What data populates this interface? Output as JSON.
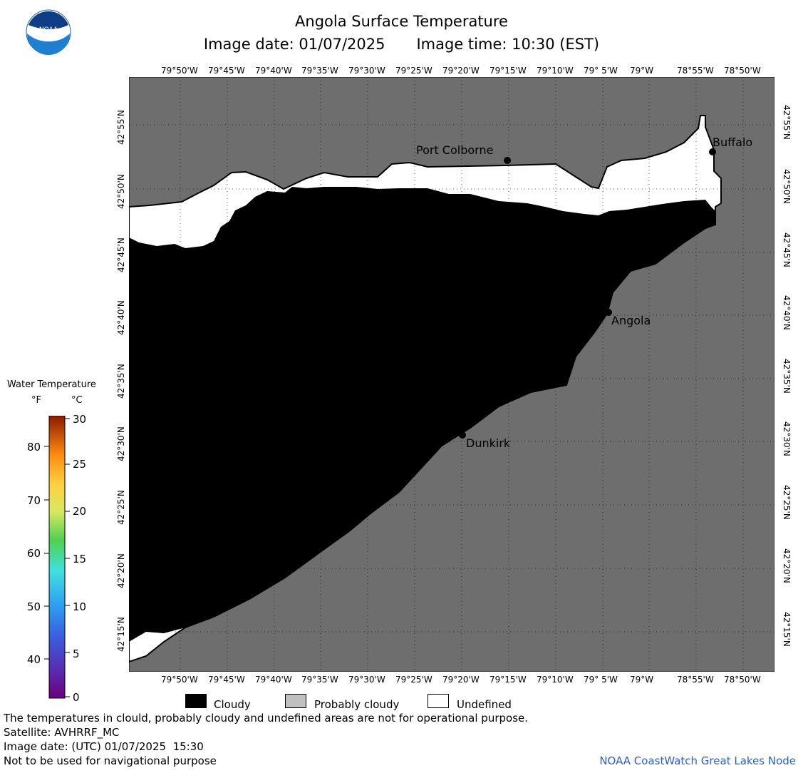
{
  "header": {
    "title": "Angola Surface Temperature",
    "image_date_label": "Image date: 01/07/2025",
    "image_time_label": "Image time: 10:30 (EST)"
  },
  "logo": {
    "text": "NOAA"
  },
  "map": {
    "longitude_labels": [
      "79°50'W",
      "79°45'W",
      "79°40'W",
      "79°35'W",
      "79°30'W",
      "79°25'W",
      "79°20'W",
      "79°15'W",
      "79°10'W",
      "79° 5'W",
      "79°W",
      "78°55'W",
      "78°50'W"
    ],
    "latitude_labels": [
      "42°55'N",
      "42°50'N",
      "42°45'N",
      "42°40'N",
      "42°35'N",
      "42°30'N",
      "42°25'N",
      "42°20'N",
      "42°15'N"
    ],
    "cities": [
      {
        "name": "Port Colborne"
      },
      {
        "name": "Buffalo"
      },
      {
        "name": "Angola"
      },
      {
        "name": "Dunkirk"
      }
    ],
    "colors": {
      "land": "#6e6e6e",
      "cloudy": "#000000",
      "undefined": "#ffffff",
      "probably_cloudy": "#c0c0c0"
    }
  },
  "legend": {
    "title": "Water Temperature",
    "unit_f": "°F",
    "unit_c": "°C",
    "fahrenheit_ticks": [
      "80",
      "70",
      "60",
      "50",
      "40"
    ],
    "celsius_ticks": [
      "30",
      "25",
      "20",
      "15",
      "10",
      "5",
      "0"
    ]
  },
  "key": {
    "cloudy": "Cloudy",
    "probably_cloudy": "Probably cloudy",
    "undefined": "Undefined"
  },
  "footer": {
    "disclaimer": "The temperatures in clould, probably cloudy and undefined areas are not for operational purpose.",
    "satellite": "Satellite: AVHRRF_MC",
    "utc_date": "Image date: (UTC) 01/07/2025  15:30",
    "navigation": "Not to be used for navigational purpose",
    "credit": "NOAA CoastWatch Great Lakes Node"
  }
}
